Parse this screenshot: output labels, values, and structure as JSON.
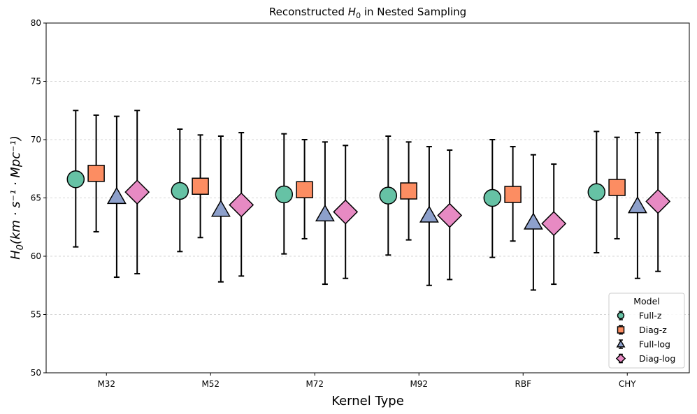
{
  "chart_data": {
    "type": "scatter",
    "title_prefix": "Reconstructed ",
    "title_symbol": "H",
    "title_subscript": "0",
    "title_suffix": " in Nested Sampling",
    "xlabel": "Kernel Type",
    "ylabel_symbol": "H",
    "ylabel_subscript": "0",
    "ylabel_body": "(km · s⁻¹ · Mpc⁻¹)",
    "ylim": [
      50,
      80
    ],
    "yticks": [
      50,
      55,
      60,
      65,
      70,
      75,
      80
    ],
    "grid": "y-dashed",
    "categories": [
      "M32",
      "M52",
      "M72",
      "M92",
      "RBF",
      "CHY"
    ],
    "legend": {
      "title": "Model",
      "position": "lower-right"
    },
    "series": [
      {
        "name": "Full-z",
        "marker": "circle",
        "color": "#66c2a5",
        "values": [
          66.6,
          65.6,
          65.3,
          65.2,
          65.0,
          65.5
        ],
        "lower": [
          60.8,
          60.4,
          60.2,
          60.1,
          59.9,
          60.3
        ],
        "upper": [
          72.5,
          70.9,
          70.5,
          70.3,
          70.0,
          70.7
        ]
      },
      {
        "name": "Diag-z",
        "marker": "square",
        "color": "#fc8d62",
        "values": [
          67.1,
          66.0,
          65.7,
          65.6,
          65.3,
          65.9
        ],
        "lower": [
          62.1,
          61.6,
          61.5,
          61.4,
          61.3,
          61.5
        ],
        "upper": [
          72.1,
          70.4,
          70.0,
          69.8,
          69.4,
          70.2
        ]
      },
      {
        "name": "Full-log",
        "marker": "triangle",
        "color": "#8da0cb",
        "values": [
          65.1,
          64.0,
          63.6,
          63.5,
          62.9,
          64.3
        ],
        "lower": [
          58.2,
          57.8,
          57.6,
          57.5,
          57.1,
          58.1
        ],
        "upper": [
          72.0,
          70.3,
          69.8,
          69.4,
          68.7,
          70.6
        ]
      },
      {
        "name": "Diag-log",
        "marker": "diamond",
        "color": "#e78ac3",
        "values": [
          65.5,
          64.4,
          63.8,
          63.5,
          62.8,
          64.7
        ],
        "lower": [
          58.5,
          58.3,
          58.1,
          58.0,
          57.6,
          58.7
        ],
        "upper": [
          72.5,
          70.6,
          69.5,
          69.1,
          67.9,
          70.6
        ]
      }
    ]
  }
}
